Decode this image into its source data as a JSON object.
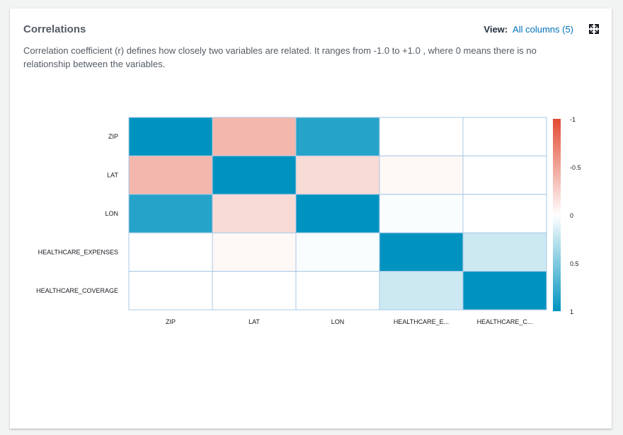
{
  "panel": {
    "title": "Correlations",
    "view_label": "View:",
    "view_value": "All columns (5)",
    "expand_icon": "expand-icon",
    "description": "Correlation coefficient (r) defines how closely two variables are related. It ranges from -1.0 to +1.0 , where 0 means there is no relationship between the variables."
  },
  "chart_data": {
    "type": "heatmap",
    "rows": [
      "ZIP",
      "LAT",
      "LON",
      "HEALTHCARE_EXPENSES",
      "HEALTHCARE_COVERAGE"
    ],
    "columns": [
      "ZIP",
      "LAT",
      "LON",
      "HEALTHCARE_E...",
      "HEALTHCARE_C..."
    ],
    "values": [
      [
        1.0,
        -0.4,
        0.85,
        0.0,
        0.0
      ],
      [
        -0.4,
        1.0,
        -0.2,
        -0.04,
        0.0
      ],
      [
        0.85,
        -0.2,
        1.0,
        0.02,
        0.0
      ],
      [
        0.0,
        -0.04,
        0.02,
        1.0,
        0.2
      ],
      [
        0.0,
        0.0,
        0.0,
        0.2,
        1.0
      ]
    ],
    "colorbar": {
      "ticks": [
        "-1",
        "-0.5",
        "0",
        "0.5",
        "1"
      ],
      "tick_values": [
        -1,
        -0.5,
        0,
        0.5,
        1
      ],
      "range": [
        -1,
        1
      ],
      "negative_color": "#e24a33",
      "zero_color": "#ffffff",
      "positive_color": "#0093c0"
    }
  }
}
